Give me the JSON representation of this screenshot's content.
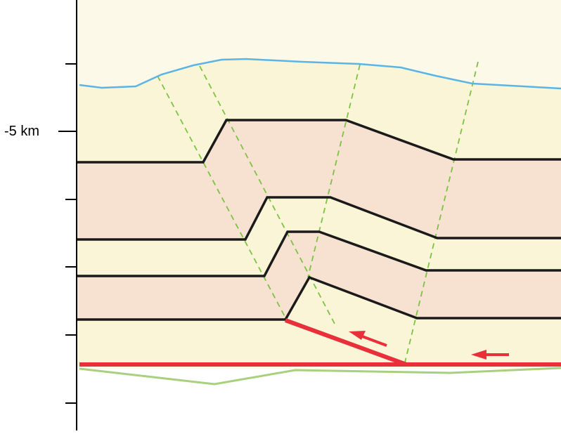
{
  "axis": {
    "depth_label": "-5  km"
  },
  "colors": {
    "background": "#ffffff",
    "sky": "#fcf9e8",
    "layer_light": "#faf5d6",
    "layer_pink": "#f7e2d2",
    "topography": "#5bb4e4",
    "horizon": "#1a1a1a",
    "axial_surface": "#7dc243",
    "fault": "#e8303a",
    "basement": "#a8d07e",
    "axis": "#000000"
  }
}
